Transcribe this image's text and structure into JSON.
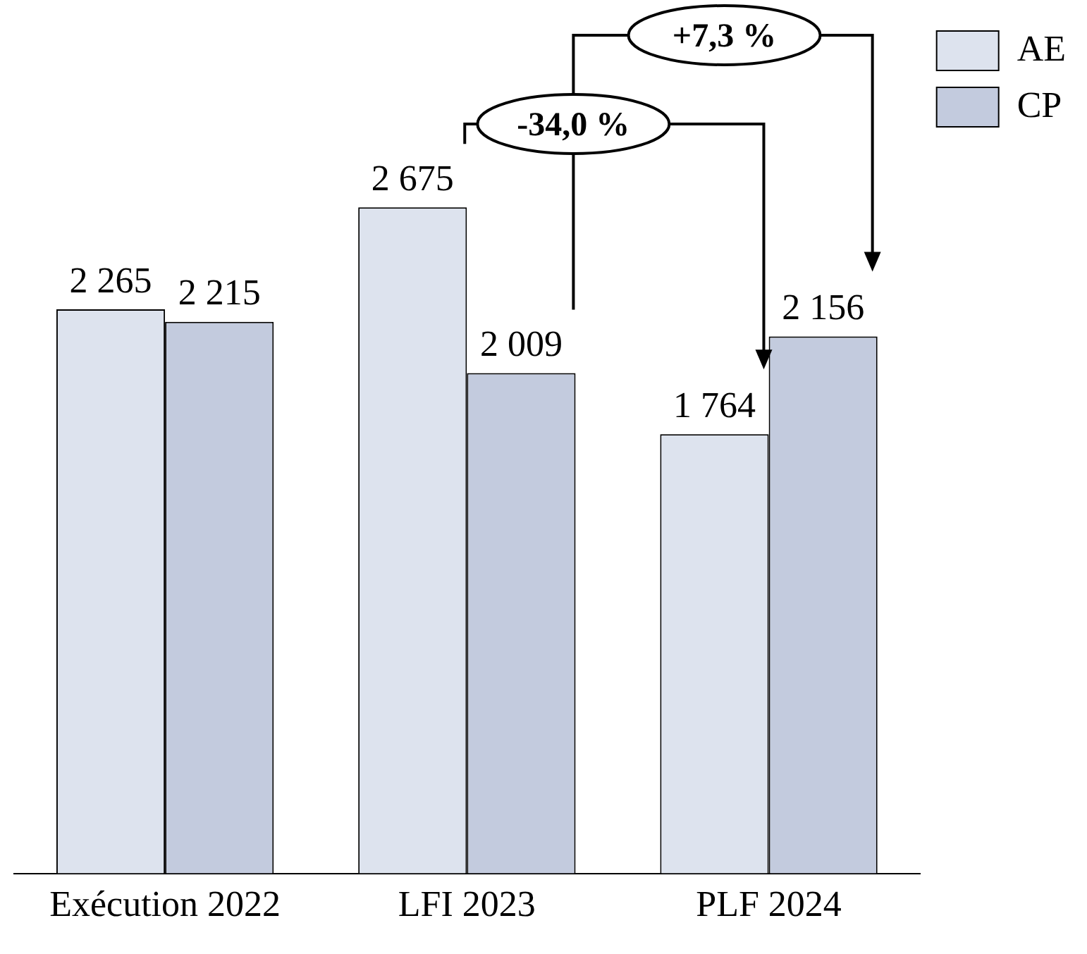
{
  "chart_data": {
    "type": "bar",
    "categories": [
      "Exécution 2022",
      "LFI 2023",
      "PLF 2024"
    ],
    "series": [
      {
        "name": "AE",
        "color": "#dde3ee",
        "values": [
          2265,
          2675,
          1764
        ]
      },
      {
        "name": "CP",
        "color": "#c3cbde",
        "values": [
          2215,
          2009,
          2156
        ]
      }
    ],
    "data_labels": true,
    "legend": "right",
    "grid": false,
    "annotations": [
      "+7,3 %",
      "-34,0 %"
    ]
  }
}
